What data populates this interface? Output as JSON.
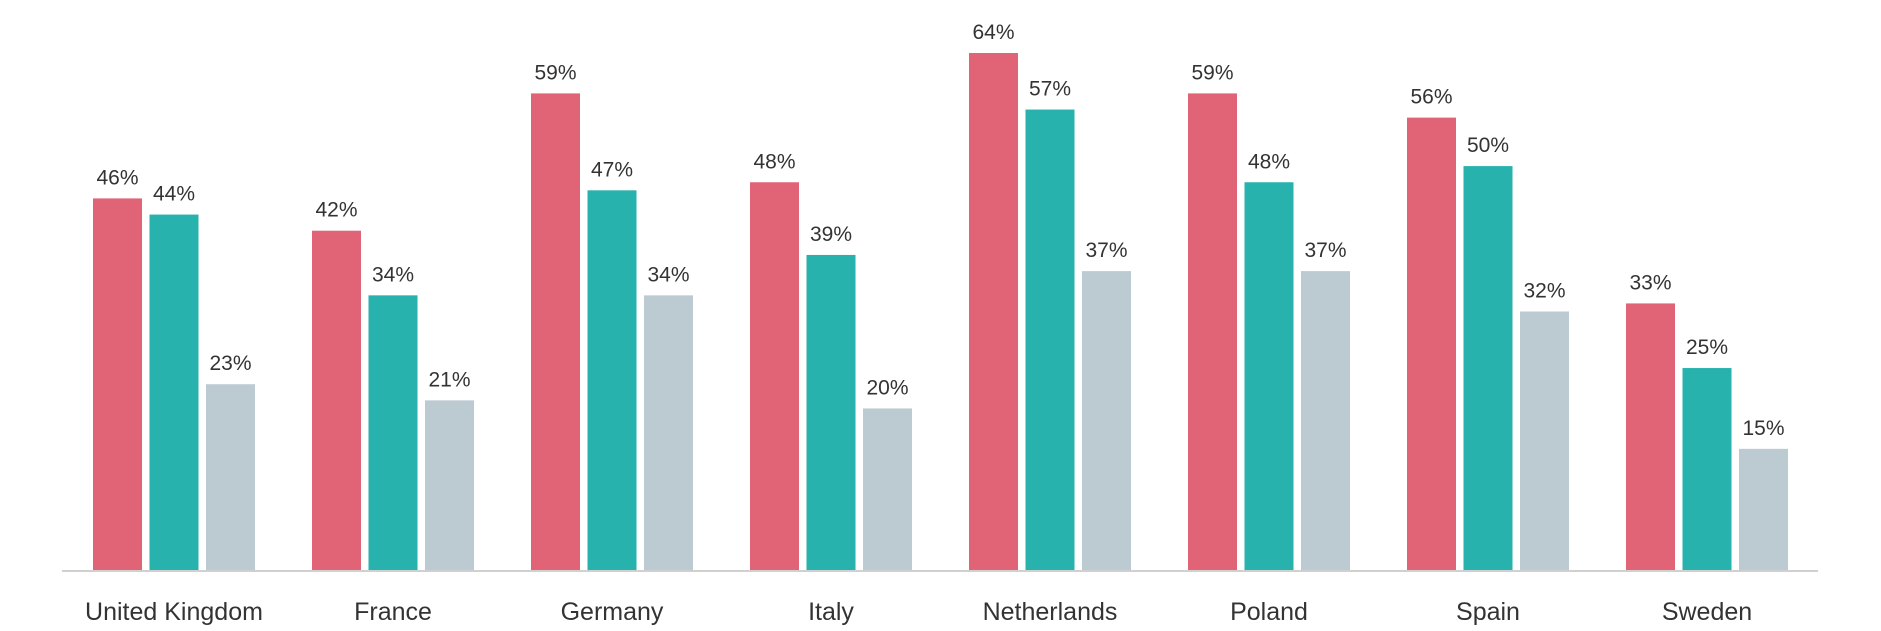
{
  "chart_data": {
    "type": "bar",
    "categories": [
      "United Kingdom",
      "France",
      "Germany",
      "Italy",
      "Netherlands",
      "Poland",
      "Spain",
      "Sweden"
    ],
    "series": [
      {
        "values": [
          46,
          42,
          59,
          48,
          64,
          59,
          56,
          33
        ],
        "color": "#e06476"
      },
      {
        "values": [
          44,
          34,
          47,
          39,
          57,
          48,
          50,
          25
        ],
        "color": "#27b2ae"
      },
      {
        "values": [
          23,
          21,
          34,
          20,
          37,
          37,
          32,
          15
        ],
        "color": "#bccbd2"
      }
    ],
    "value_suffix": "%",
    "ylim": [
      0,
      64
    ],
    "grid": false,
    "legend": "none",
    "axis_color": "#d0d0d0"
  }
}
